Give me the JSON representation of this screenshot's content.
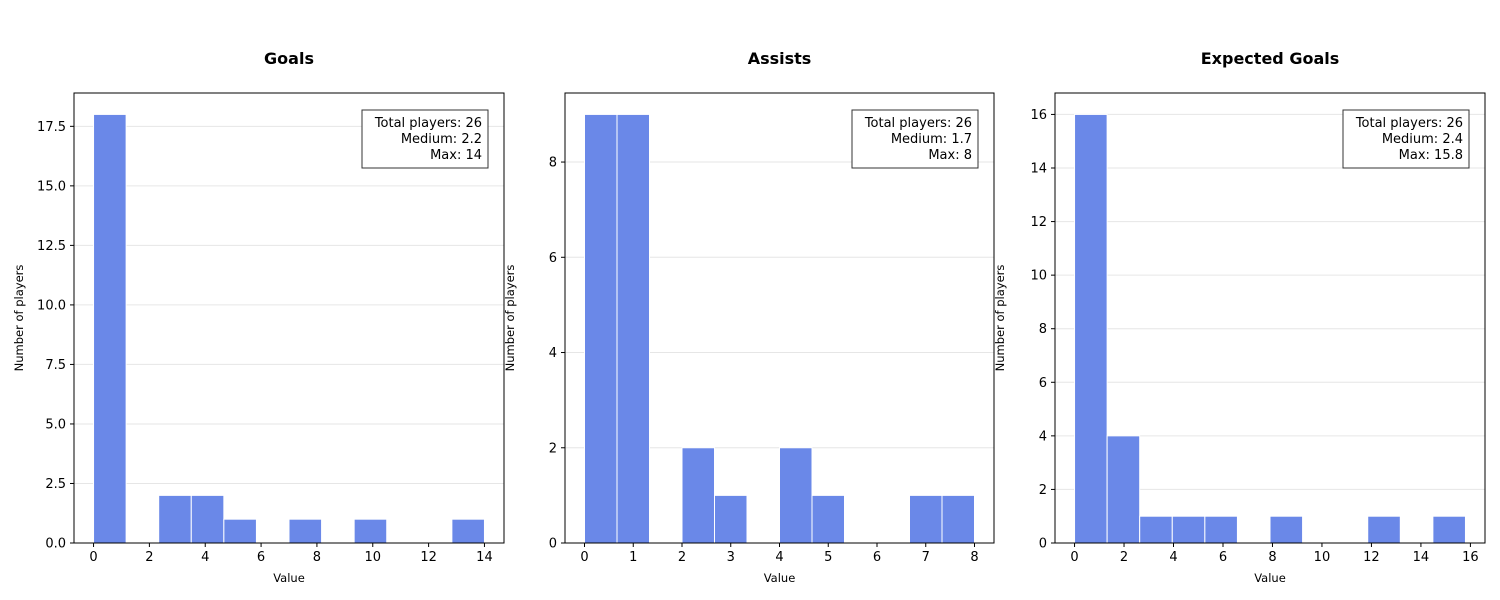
{
  "chart_data": [
    {
      "type": "bar",
      "title": "Goals",
      "xlabel": "Value",
      "ylabel": "Number of players",
      "bin_edges": [
        0,
        1.1667,
        2.3333,
        3.5,
        4.6667,
        5.8333,
        7,
        8.1667,
        9.3333,
        10.5,
        11.6667,
        12.8333,
        14
      ],
      "values": [
        18,
        0,
        2,
        2,
        1,
        0,
        1,
        0,
        1,
        0,
        0,
        1
      ],
      "xlim": [
        -0.7,
        14.7
      ],
      "ylim": [
        0,
        18.9
      ],
      "xticks": [
        0,
        2,
        4,
        6,
        8,
        10,
        12,
        14
      ],
      "xtick_labels": [
        "0",
        "2",
        "4",
        "6",
        "8",
        "10",
        "12",
        "14"
      ],
      "yticks": [
        0,
        2.5,
        5,
        7.5,
        10,
        12.5,
        15,
        17.5
      ],
      "ytick_labels": [
        "0.0",
        "2.5",
        "5.0",
        "7.5",
        "10.0",
        "12.5",
        "15.0",
        "17.5"
      ],
      "grid": "y",
      "stats_lines": [
        "Total players: 26",
        "Medium: 2.2",
        "Max: 14"
      ],
      "stats_placement": "top-right"
    },
    {
      "type": "bar",
      "title": "Assists",
      "xlabel": "Value",
      "ylabel": "Number of players",
      "bin_edges": [
        0,
        0.6667,
        1.3333,
        2,
        2.6667,
        3.3333,
        4,
        4.6667,
        5.3333,
        6,
        6.6667,
        7.3333,
        8
      ],
      "values": [
        9,
        9,
        0,
        2,
        1,
        0,
        2,
        1,
        0,
        0,
        1,
        1
      ],
      "xlim": [
        -0.4,
        8.4
      ],
      "ylim": [
        0,
        9.45
      ],
      "xticks": [
        0,
        1,
        2,
        3,
        4,
        5,
        6,
        7,
        8
      ],
      "xtick_labels": [
        "0",
        "1",
        "2",
        "3",
        "4",
        "5",
        "6",
        "7",
        "8"
      ],
      "yticks": [
        0,
        2,
        4,
        6,
        8
      ],
      "ytick_labels": [
        "0",
        "2",
        "4",
        "6",
        "8"
      ],
      "grid": "y",
      "stats_lines": [
        "Total players: 26",
        "Medium: 1.7",
        "Max: 8"
      ],
      "stats_placement": "top-right"
    },
    {
      "type": "bar",
      "title": "Expected Goals",
      "xlabel": "Value",
      "ylabel": "Number of players",
      "bin_edges": [
        0,
        1.3167,
        2.6333,
        3.95,
        5.2667,
        6.5833,
        7.9,
        9.2167,
        10.5333,
        11.85,
        13.1667,
        14.4833,
        15.8
      ],
      "values": [
        16,
        4,
        1,
        1,
        1,
        0,
        1,
        0,
        0,
        1,
        0,
        1
      ],
      "xlim": [
        -0.79,
        16.59
      ],
      "ylim": [
        0,
        16.8
      ],
      "xticks": [
        0,
        2,
        4,
        6,
        8,
        10,
        12,
        14,
        16
      ],
      "xtick_labels": [
        "0",
        "2",
        "4",
        "6",
        "8",
        "10",
        "12",
        "14",
        "16"
      ],
      "yticks": [
        0,
        2,
        4,
        6,
        8,
        10,
        12,
        14,
        16
      ],
      "ytick_labels": [
        "0",
        "2",
        "4",
        "6",
        "8",
        "10",
        "12",
        "14",
        "16"
      ],
      "grid": "y",
      "stats_lines": [
        "Total players: 26",
        "Medium: 2.4",
        "Max: 15.8"
      ],
      "stats_placement": "top-right"
    }
  ],
  "colors": {
    "bar_fill": "#6a88e8",
    "bar_edge": "#ffffff",
    "grid": "#e6e6e6",
    "axis": "#000000",
    "text": "#000000"
  }
}
